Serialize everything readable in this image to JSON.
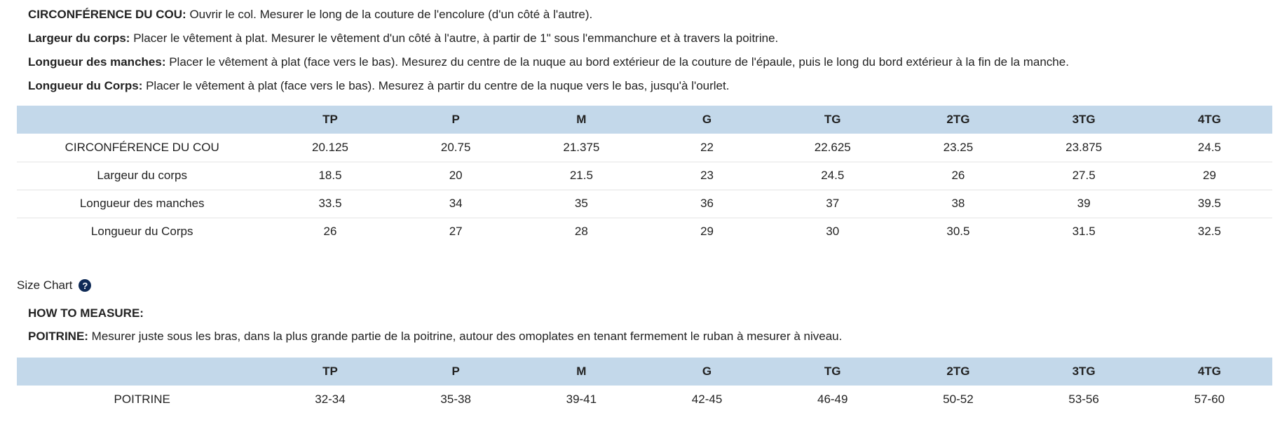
{
  "measurements": [
    {
      "term": "CIRCONFÉRENCE DU COU:",
      "text": " Ouvrir le col. Mesurer le long de la couture de l'encolure (d'un côté à l'autre)."
    },
    {
      "term": "Largeur du corps:",
      "text": " Placer le vêtement à plat. Mesurer le vêtement d'un côté à l'autre, à partir de 1\" sous l'emmanchure et à travers la poitrine."
    },
    {
      "term": "Longueur des manches:",
      "text": " Placer le vêtement à plat (face vers le bas). Mesurez du centre de la nuque au bord extérieur de la couture de l'épaule, puis le long du bord extérieur à la fin de la manche."
    },
    {
      "term": "Longueur du Corps:",
      "text": " Placer le vêtement à plat (face vers le bas). Mesurez à partir du centre de la nuque vers le bas, jusqu'à l'ourlet."
    }
  ],
  "table1": {
    "headers": [
      "",
      "TP",
      "P",
      "M",
      "G",
      "TG",
      "2TG",
      "3TG",
      "4TG"
    ],
    "rows": [
      {
        "label": "CIRCONFÉRENCE DU COU",
        "values": [
          "20.125",
          "20.75",
          "21.375",
          "22",
          "22.625",
          "23.25",
          "23.875",
          "24.5"
        ]
      },
      {
        "label": "Largeur du corps",
        "values": [
          "18.5",
          "20",
          "21.5",
          "23",
          "24.5",
          "26",
          "27.5",
          "29"
        ]
      },
      {
        "label": "Longueur des manches",
        "values": [
          "33.5",
          "34",
          "35",
          "36",
          "37",
          "38",
          "39",
          "39.5"
        ]
      },
      {
        "label": "Longueur du Corps",
        "values": [
          "26",
          "27",
          "28",
          "29",
          "30",
          "30.5",
          "31.5",
          "32.5"
        ]
      }
    ]
  },
  "size_chart": {
    "label": "Size Chart",
    "help_icon": "?"
  },
  "how_to": "HOW TO MEASURE:",
  "poitrine_instruction": {
    "term": "POITRINE:",
    "text": " Mesurer juste sous les bras, dans la plus grande partie de la poitrine, autour des omoplates en tenant fermement le ruban à mesurer à niveau."
  },
  "table2": {
    "headers": [
      "",
      "TP",
      "P",
      "M",
      "G",
      "TG",
      "2TG",
      "3TG",
      "4TG"
    ],
    "rows": [
      {
        "label": "POITRINE",
        "values": [
          "32-34",
          "35-38",
          "39-41",
          "42-45",
          "46-49",
          "50-52",
          "53-56",
          "57-60"
        ]
      }
    ]
  },
  "colors": {
    "header_bg": "#c3d8ea",
    "help_icon_bg": "#0f2a56",
    "text": "#222222"
  }
}
